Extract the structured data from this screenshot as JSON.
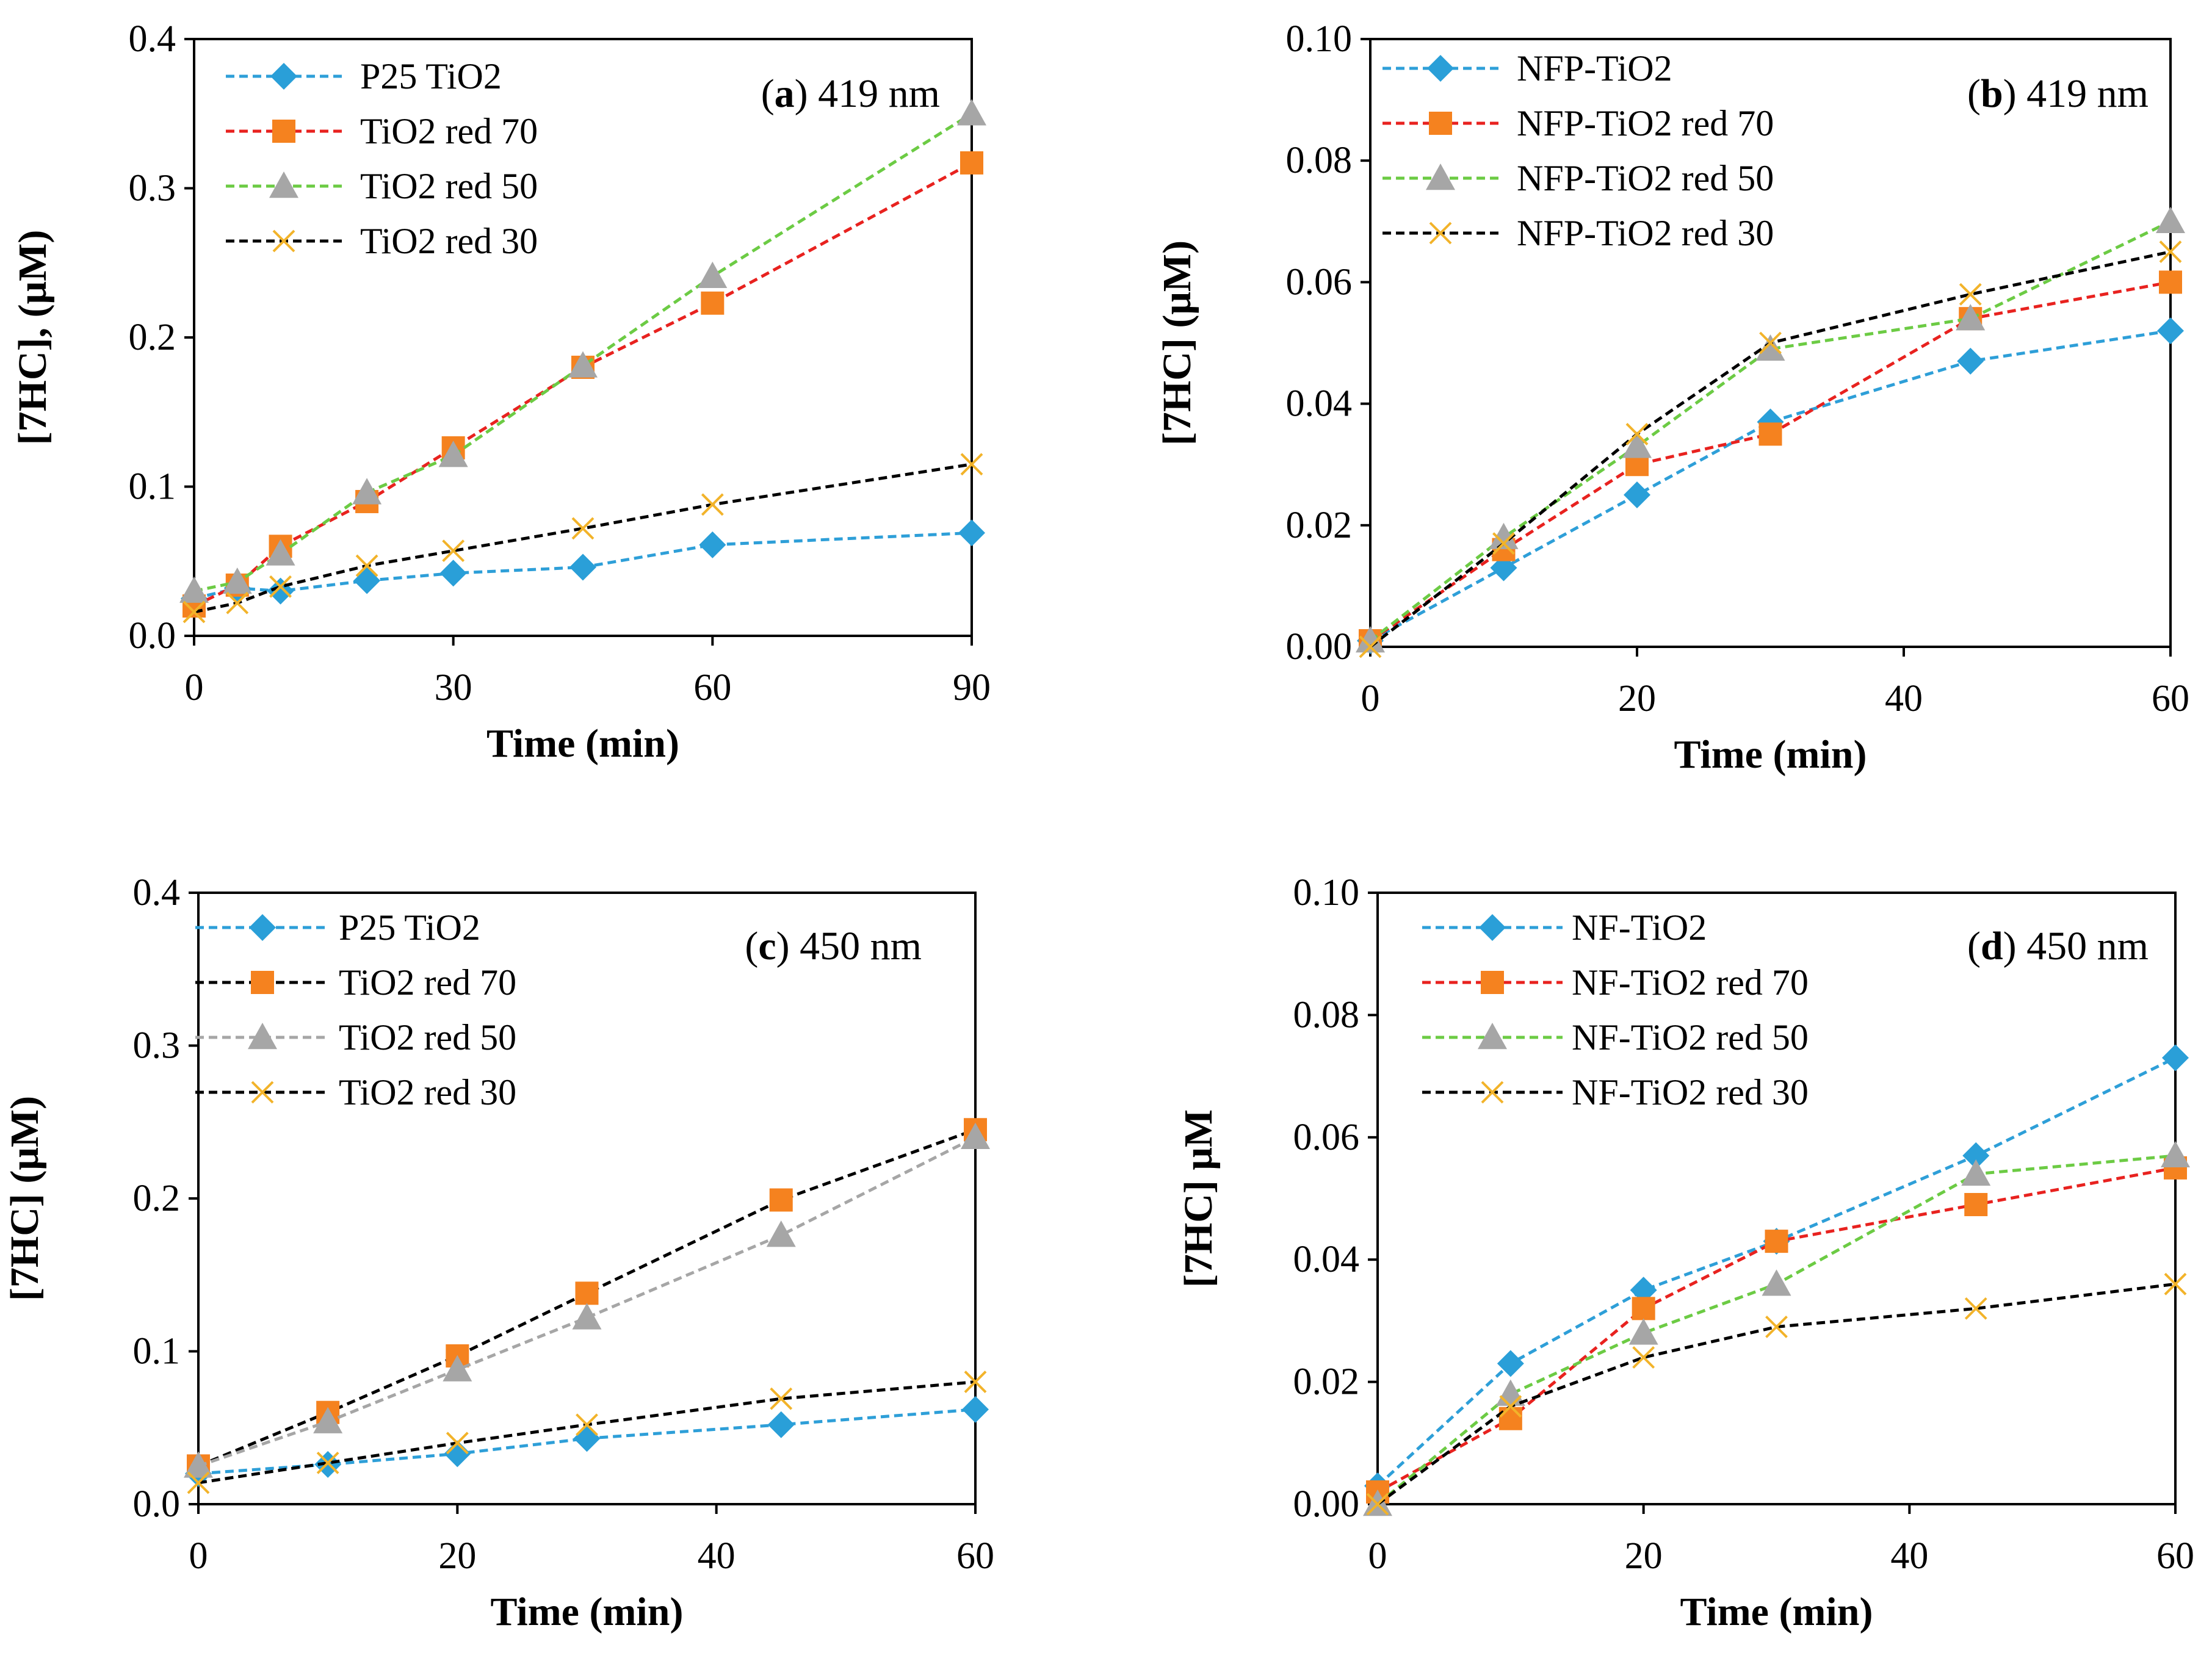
{
  "colors": {
    "blue": "#2E9FD8",
    "red": "#E8221F",
    "green": "#6CCB44",
    "gray": "#A6A6A6",
    "black": "#000000",
    "orange_marker": "#F5821F",
    "blue_marker": "#2A9FD8",
    "gray_marker": "#A6A6A6",
    "x_marker": "#F2B32A"
  },
  "chart_data": [
    {
      "type": "line",
      "panel": "a",
      "label_letter": "a",
      "label_rest": " 419 nm",
      "title": "(a) 419 nm",
      "xlabel": "Time (min)",
      "ylabel": "[7HC], (μM)",
      "xlim": [
        0,
        90
      ],
      "ylim": [
        0,
        0.4
      ],
      "xticks": [
        0,
        30,
        60,
        90
      ],
      "xtick_labels": [
        "0",
        "30",
        "60",
        "90"
      ],
      "yticks": [
        0,
        0.1,
        0.2,
        0.3,
        0.4
      ],
      "ytick_labels": [
        "0.0",
        "0.1",
        "0.2",
        "0.3",
        "0.4"
      ],
      "series": [
        {
          "name": "P25 TiO2",
          "line_color": "blue",
          "marker": "diamond",
          "marker_color": "blue_marker",
          "x": [
            0,
            5,
            10,
            20,
            30,
            45,
            60,
            90
          ],
          "y": [
            0.025,
            0.032,
            0.03,
            0.037,
            0.042,
            0.046,
            0.061,
            0.069
          ]
        },
        {
          "name": "TiO2 red 70",
          "line_color": "red",
          "marker": "square",
          "marker_color": "orange_marker",
          "x": [
            0,
            5,
            10,
            20,
            30,
            45,
            60,
            90
          ],
          "y": [
            0.02,
            0.034,
            0.06,
            0.09,
            0.126,
            0.18,
            0.223,
            0.317
          ]
        },
        {
          "name": "TiO2 red 50",
          "line_color": "green",
          "marker": "triangle",
          "marker_color": "gray_marker",
          "x": [
            0,
            5,
            10,
            20,
            30,
            45,
            60,
            90
          ],
          "y": [
            0.03,
            0.036,
            0.055,
            0.096,
            0.121,
            0.181,
            0.241,
            0.35
          ]
        },
        {
          "name": "TiO2 red 30",
          "line_color": "black",
          "marker": "x",
          "marker_color": "x_marker",
          "x": [
            0,
            5,
            10,
            20,
            30,
            45,
            60,
            90
          ],
          "y": [
            0.016,
            0.022,
            0.033,
            0.047,
            0.057,
            0.072,
            0.088,
            0.115
          ]
        }
      ]
    },
    {
      "type": "line",
      "panel": "b",
      "label_letter": "b",
      "label_rest": " 419 nm",
      "title": "(b) 419 nm",
      "xlabel": "Time (min)",
      "ylabel": "[7HC] (μM)",
      "xlim": [
        0,
        60
      ],
      "ylim": [
        0,
        0.1
      ],
      "xticks": [
        0,
        20,
        40,
        60
      ],
      "xtick_labels": [
        "0",
        "20",
        "40",
        "60"
      ],
      "yticks": [
        0,
        0.02,
        0.04,
        0.06,
        0.08,
        0.1
      ],
      "ytick_labels": [
        "0.00",
        "0.02",
        "0.04",
        "0.06",
        "0.08",
        "0.10"
      ],
      "series": [
        {
          "name": "NFP-TiO2",
          "line_color": "blue",
          "marker": "diamond",
          "marker_color": "blue_marker",
          "x": [
            0,
            10,
            20,
            30,
            45,
            60
          ],
          "y": [
            0.001,
            0.013,
            0.025,
            0.037,
            0.047,
            0.052
          ]
        },
        {
          "name": "NFP-TiO2 red 70",
          "line_color": "red",
          "marker": "square",
          "marker_color": "orange_marker",
          "x": [
            0,
            10,
            20,
            30,
            45,
            60
          ],
          "y": [
            0.001,
            0.016,
            0.03,
            0.035,
            0.054,
            0.06
          ]
        },
        {
          "name": "NFP-TiO2 red 50",
          "line_color": "green",
          "marker": "triangle",
          "marker_color": "gray_marker",
          "x": [
            0,
            10,
            20,
            30,
            45,
            60
          ],
          "y": [
            0.001,
            0.018,
            0.033,
            0.049,
            0.054,
            0.07
          ]
        },
        {
          "name": "NFP-TiO2 red 30",
          "line_color": "black",
          "marker": "x",
          "marker_color": "x_marker",
          "x": [
            0,
            10,
            20,
            30,
            45,
            60
          ],
          "y": [
            0.0,
            0.017,
            0.035,
            0.05,
            0.058,
            0.065
          ]
        }
      ]
    },
    {
      "type": "line",
      "panel": "c",
      "label_letter": "c",
      "label_rest": " 450 nm",
      "title": "(c) 450 nm",
      "xlabel": "Time (min)",
      "ylabel": "[7HC] (μM)",
      "xlim": [
        0,
        60
      ],
      "ylim": [
        0,
        0.4
      ],
      "xticks": [
        0,
        20,
        40,
        60
      ],
      "xtick_labels": [
        "0",
        "20",
        "40",
        "60"
      ],
      "yticks": [
        0,
        0.1,
        0.2,
        0.3,
        0.4
      ],
      "ytick_labels": [
        "0.0",
        "0.1",
        "0.2",
        "0.3",
        "0.4"
      ],
      "series": [
        {
          "name": "P25 TiO2",
          "line_color": "blue",
          "marker": "diamond",
          "marker_color": "blue_marker",
          "x": [
            0,
            10,
            20,
            30,
            45,
            60
          ],
          "y": [
            0.02,
            0.026,
            0.033,
            0.043,
            0.052,
            0.062
          ]
        },
        {
          "name": "TiO2 red 70",
          "line_color": "black",
          "marker": "square",
          "marker_color": "orange_marker",
          "x": [
            0,
            10,
            20,
            30,
            45,
            60
          ],
          "y": [
            0.025,
            0.06,
            0.097,
            0.138,
            0.199,
            0.245
          ]
        },
        {
          "name": "TiO2 red 50",
          "line_color": "gray",
          "marker": "triangle",
          "marker_color": "gray_marker",
          "x": [
            0,
            10,
            20,
            30,
            45,
            60
          ],
          "y": [
            0.025,
            0.054,
            0.088,
            0.122,
            0.176,
            0.24
          ]
        },
        {
          "name": "TiO2 red 30",
          "line_color": "black",
          "marker": "x",
          "marker_color": "x_marker",
          "x": [
            0,
            10,
            20,
            30,
            45,
            60
          ],
          "y": [
            0.014,
            0.027,
            0.04,
            0.052,
            0.069,
            0.08
          ]
        }
      ]
    },
    {
      "type": "line",
      "panel": "d",
      "label_letter": "d",
      "label_rest": " 450 nm",
      "title": "(d) 450 nm",
      "xlabel": "Time (min)",
      "ylabel": "[7HC] μM",
      "xlim": [
        0,
        60
      ],
      "ylim": [
        0,
        0.1
      ],
      "xticks": [
        0,
        20,
        40,
        60
      ],
      "xtick_labels": [
        "0",
        "20",
        "40",
        "60"
      ],
      "yticks": [
        0,
        0.02,
        0.04,
        0.06,
        0.08,
        0.1
      ],
      "ytick_labels": [
        "0.00",
        "0.02",
        "0.04",
        "0.06",
        "0.08",
        "0.10"
      ],
      "series": [
        {
          "name": "NF-TiO2",
          "line_color": "blue",
          "marker": "diamond",
          "marker_color": "blue_marker",
          "x": [
            0,
            10,
            20,
            30,
            45,
            60
          ],
          "y": [
            0.003,
            0.023,
            0.035,
            0.043,
            0.057,
            0.073
          ]
        },
        {
          "name": "NF-TiO2 red 70",
          "line_color": "red",
          "marker": "square",
          "marker_color": "orange_marker",
          "x": [
            0,
            10,
            20,
            30,
            45,
            60
          ],
          "y": [
            0.002,
            0.014,
            0.032,
            0.043,
            0.049,
            0.055
          ]
        },
        {
          "name": "NF-TiO2 red 50",
          "line_color": "green",
          "marker": "triangle",
          "marker_color": "gray_marker",
          "x": [
            0,
            10,
            20,
            30,
            45,
            60
          ],
          "y": [
            0.0,
            0.018,
            0.028,
            0.036,
            0.054,
            0.057
          ]
        },
        {
          "name": "NF-TiO2 red 30",
          "line_color": "black",
          "marker": "x",
          "marker_color": "x_marker",
          "x": [
            0,
            10,
            20,
            30,
            45,
            60
          ],
          "y": [
            0.0,
            0.016,
            0.024,
            0.029,
            0.032,
            0.036
          ]
        }
      ]
    }
  ]
}
